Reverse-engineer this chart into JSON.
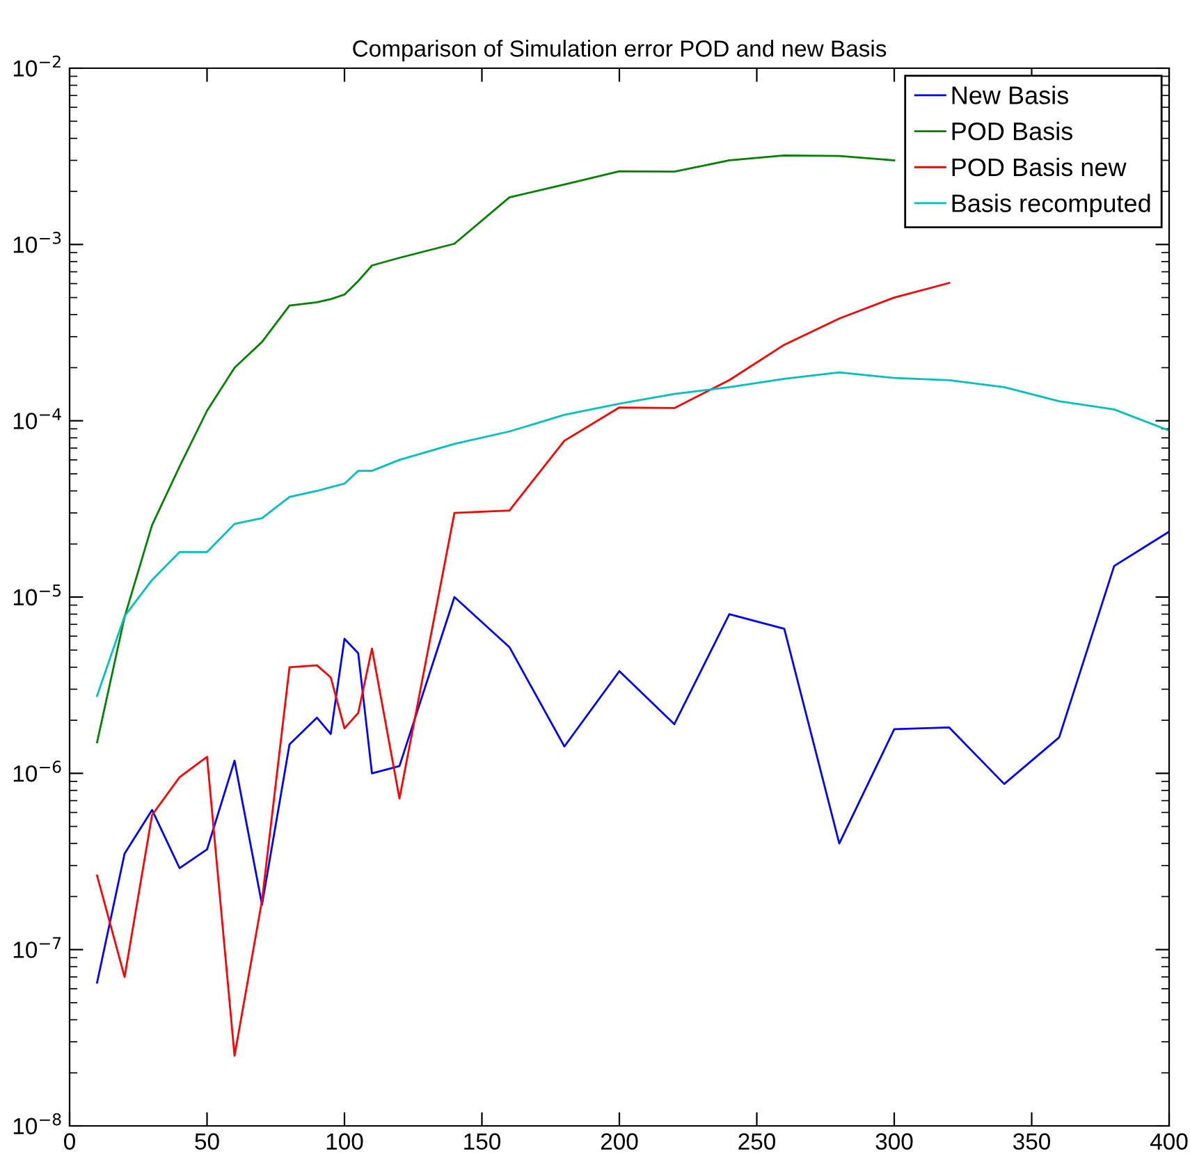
{
  "chart_data": {
    "type": "line",
    "title": "Comparison of Simulation error POD and new Basis",
    "x": [
      10,
      20,
      30,
      40,
      50,
      60,
      70,
      80,
      90,
      95,
      100,
      105,
      110,
      120,
      140,
      160,
      180,
      200,
      220,
      240,
      260,
      280,
      300,
      320,
      340,
      360,
      380,
      400
    ],
    "series": [
      {
        "name": "New Basis",
        "color": "#0000ff",
        "values": [
          6.5e-08,
          3.5e-07,
          6.2e-07,
          2.9e-07,
          3.7e-07,
          1.18e-06,
          1.8e-07,
          1.46e-06,
          2.07e-06,
          1.67e-06,
          5.8e-06,
          4.8e-06,
          1e-06,
          1.1e-06,
          1e-05,
          5.2e-06,
          1.42e-06,
          3.8e-06,
          1.9e-06,
          8e-06,
          6.6e-06,
          4e-07,
          1.78e-06,
          1.82e-06,
          8.7e-07,
          1.6e-06,
          1.5e-05,
          2.35e-05
        ]
      },
      {
        "name": "POD Basis",
        "color": "#008000",
        "values": [
          1.5e-06,
          7.7e-06,
          2.56e-05,
          5.5e-05,
          0.000114,
          0.0002,
          0.00028,
          0.00045,
          0.00047,
          0.00049,
          0.00052,
          0.00062,
          0.00076,
          0.00084,
          0.00101,
          0.00185,
          0.00219,
          0.0026,
          0.00259,
          0.003,
          0.0032,
          0.00318,
          0.003,
          null,
          null,
          null,
          null,
          null
        ]
      },
      {
        "name": "POD Basis new",
        "color": "#ff0000",
        "values": [
          2.63e-07,
          7e-08,
          5.8e-07,
          9.5e-07,
          1.24e-06,
          2.5e-08,
          1.9e-07,
          4e-06,
          4.1e-06,
          3.5e-06,
          1.8e-06,
          2.2e-06,
          5.1e-06,
          7.2e-07,
          3e-05,
          3.1e-05,
          7.7e-05,
          0.000119,
          0.000118,
          0.00017,
          0.00027,
          0.00038,
          0.0005,
          0.000605,
          null,
          null,
          null,
          null
        ]
      },
      {
        "name": "Basis recomputed",
        "color": "#00bfbf",
        "values": [
          2.75e-06,
          7.8e-06,
          1.25e-05,
          1.8e-05,
          1.8e-05,
          2.6e-05,
          2.8e-05,
          3.7e-05,
          4e-05,
          4.2e-05,
          4.4e-05,
          5.2e-05,
          5.2e-05,
          6e-05,
          7.4e-05,
          8.7e-05,
          0.000108,
          0.000125,
          0.000142,
          0.000155,
          0.000173,
          0.000188,
          0.000175,
          0.00017,
          0.000155,
          0.000129,
          0.000116,
          8.8e-05
        ]
      }
    ],
    "log": "y",
    "xlim": [
      0,
      400
    ],
    "xticks": [
      0,
      50,
      100,
      150,
      200,
      250,
      300,
      350,
      400
    ],
    "ylim": [
      1e-08,
      0.01
    ],
    "yticks": [
      {
        "value": 1e-08,
        "label": "10$^{−8}$"
      },
      {
        "value": 1e-07,
        "label": "10$^{−7}$"
      },
      {
        "value": 1e-06,
        "label": "10$^{−6}$"
      },
      {
        "value": 1e-05,
        "label": "10$^{−5}$"
      },
      {
        "value": 0.0001,
        "label": "10$^{−4}$"
      },
      {
        "value": 0.001,
        "label": "10$^{−3}$"
      },
      {
        "value": 0.01,
        "label": "10$^{−2}$"
      }
    ],
    "legend": "top right",
    "grid": false
  }
}
